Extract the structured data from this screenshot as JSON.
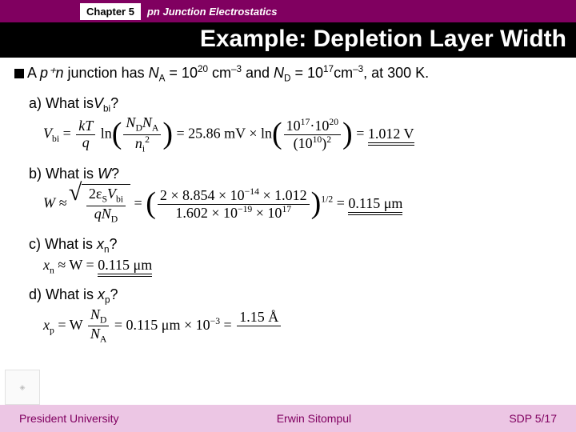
{
  "header": {
    "chapter": "Chapter 5",
    "subtitle": "pn Junction Electrostatics"
  },
  "title": "Example: Depletion Layer Width",
  "given": {
    "prefix": "A ",
    "junction": "p⁺n",
    "mid": " junction has ",
    "na_label": "N",
    "na_sub": "A",
    "eq1": " = 10",
    "na_exp": "20",
    "unit1": " cm",
    "exp_neg3a": "–3",
    "and": " and ",
    "nd_label": "N",
    "nd_sub": "D",
    "eq2": " = 10",
    "nd_exp": "17",
    "unit2": "cm",
    "exp_neg3b": "–3",
    "tail": ", at 300 K."
  },
  "qa": {
    "label": "a) What is",
    "var": "V",
    "sub": "bi",
    "q": "?"
  },
  "eqa": {
    "lhs_v": "V",
    "lhs_sub": "bi",
    "kt": "kT",
    "q": "q",
    "nd": "N",
    "nd_s": "D",
    "na": "N",
    "na_s": "A",
    "ni": "n",
    "ni_s": "i",
    "ni_sup": "2",
    "val1": "25.86 mV × ln",
    "num2a": "10",
    "num2a_s": "17",
    "dot": "·",
    "num2b": "10",
    "num2b_s": "20",
    "den2a": "10",
    "den2a_s": "10",
    "den2sq": "2",
    "res": "1.012 V"
  },
  "qb": {
    "label": "b) What is ",
    "var": "W",
    "q": "?"
  },
  "eqb": {
    "lhs": "W ≈",
    "two_eps": "2ε",
    "eps_s": "S",
    "vbi": "V",
    "vbi_s": "bi",
    "qN": "qN",
    "qN_s": "D",
    "num": "2 × 8.854 × 10",
    "num_exp": "−14",
    "num2": " × 1.012",
    "den": "1.602 × 10",
    "den_exp": "−19",
    "den2": " × 10",
    "den2_exp": "17",
    "half": "1/2",
    "res": "0.115 μm"
  },
  "qc": {
    "label": "c) What is ",
    "var": "x",
    "sub": "n",
    "q": "?"
  },
  "eqc": {
    "lhs": "x",
    "lhs_s": "n",
    "approx": " ≈ W = ",
    "res": "0.115 μm"
  },
  "qd": {
    "label": "d) What is ",
    "var": "x",
    "sub": "p",
    "q": "?"
  },
  "eqd": {
    "lhs": "x",
    "lhs_s": "p",
    "eq": " = W",
    "nd": "N",
    "nd_s": "D",
    "na": "N",
    "na_s": "A",
    "mid": " = 0.115 μm × 10",
    "exp": "−3",
    "eq2": " = ",
    "res1": "1.15 Å",
    "res2": "1.15 Å"
  },
  "footer": {
    "left": "President University",
    "center": "Erwin Sitompul",
    "right": "SDP 5/17"
  }
}
